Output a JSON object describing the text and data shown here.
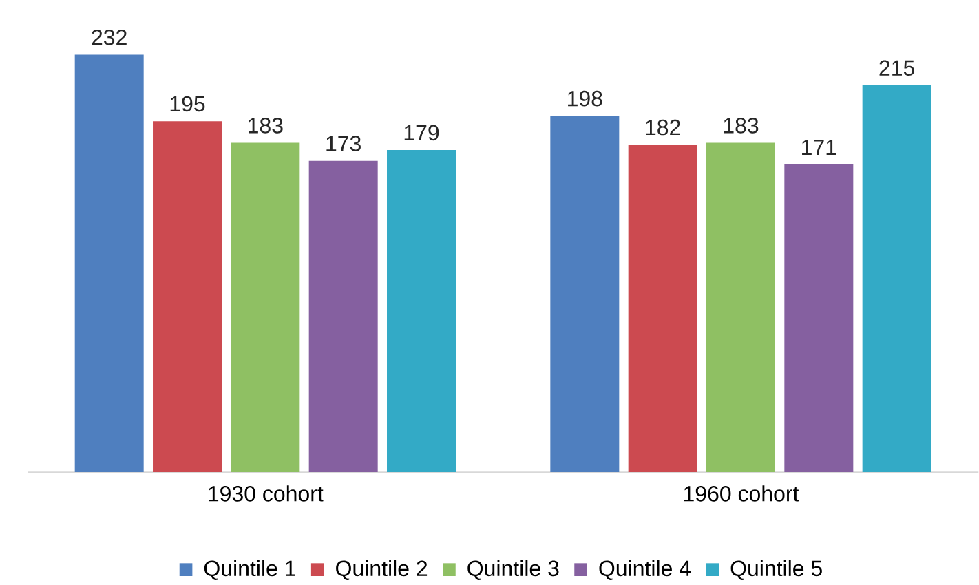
{
  "chart_data": {
    "type": "bar",
    "categories": [
      "1930 cohort",
      "1960 cohort"
    ],
    "series": [
      {
        "name": "Quintile 1",
        "color": "#4f7fbf",
        "values": [
          232,
          198
        ]
      },
      {
        "name": "Quintile 2",
        "color": "#cc4a50",
        "values": [
          195,
          182
        ]
      },
      {
        "name": "Quintile 3",
        "color": "#8fc063",
        "values": [
          183,
          183
        ]
      },
      {
        "name": "Quintile 4",
        "color": "#8560a0",
        "values": [
          173,
          171
        ]
      },
      {
        "name": "Quintile 5",
        "color": "#33aac6",
        "values": [
          179,
          215
        ]
      }
    ],
    "data_labels": true,
    "legend": "bottom"
  }
}
